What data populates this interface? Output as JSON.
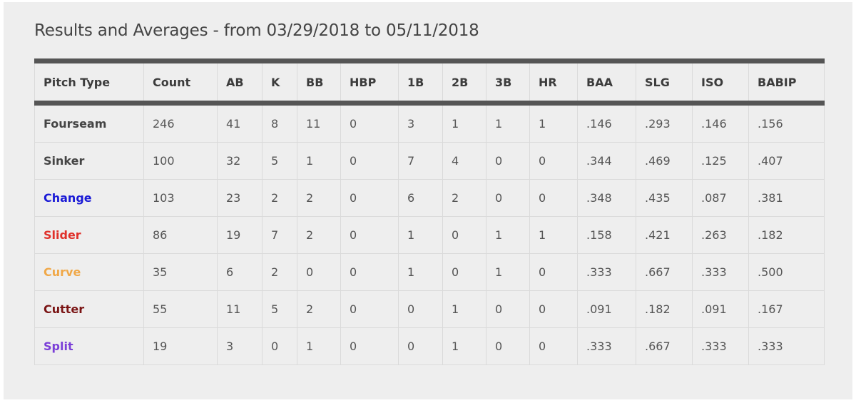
{
  "page": {
    "title": "Results and Averages - from 03/29/2018 to 05/11/2018",
    "date_from": "03/29/2018",
    "date_to": "05/11/2018"
  },
  "table": {
    "columns": [
      "Pitch Type",
      "Count",
      "AB",
      "K",
      "BB",
      "HBP",
      "1B",
      "2B",
      "3B",
      "HR",
      "BAA",
      "SLG",
      "ISO",
      "BABIP"
    ],
    "rows": [
      {
        "pitch_type": "Fourseam",
        "color": "#444444",
        "values": [
          "246",
          "41",
          "8",
          "11",
          "0",
          "3",
          "1",
          "1",
          "1",
          ".146",
          ".293",
          ".146",
          ".156"
        ]
      },
      {
        "pitch_type": "Sinker",
        "color": "#444444",
        "values": [
          "100",
          "32",
          "5",
          "1",
          "0",
          "7",
          "4",
          "0",
          "0",
          ".344",
          ".469",
          ".125",
          ".407"
        ]
      },
      {
        "pitch_type": "Change",
        "color": "#1a1ad6",
        "values": [
          "103",
          "23",
          "2",
          "2",
          "0",
          "6",
          "2",
          "0",
          "0",
          ".348",
          ".435",
          ".087",
          ".381"
        ]
      },
      {
        "pitch_type": "Slider",
        "color": "#e0302a",
        "values": [
          "86",
          "19",
          "7",
          "2",
          "0",
          "1",
          "0",
          "1",
          "1",
          ".158",
          ".421",
          ".263",
          ".182"
        ]
      },
      {
        "pitch_type": "Curve",
        "color": "#f0a848",
        "values": [
          "35",
          "6",
          "2",
          "0",
          "0",
          "1",
          "0",
          "1",
          "0",
          ".333",
          ".667",
          ".333",
          ".500"
        ]
      },
      {
        "pitch_type": "Cutter",
        "color": "#7a1414",
        "values": [
          "55",
          "11",
          "5",
          "2",
          "0",
          "0",
          "1",
          "0",
          "0",
          ".091",
          ".182",
          ".091",
          ".167"
        ]
      },
      {
        "pitch_type": "Split",
        "color": "#7b3fd8",
        "values": [
          "19",
          "3",
          "0",
          "1",
          "0",
          "0",
          "1",
          "0",
          "0",
          ".333",
          ".667",
          ".333",
          ".333"
        ]
      }
    ]
  },
  "colors": {
    "panel_bg": "#eeeeee",
    "header_bar": "#555555",
    "grid": "#dadada",
    "text": "#555555"
  }
}
